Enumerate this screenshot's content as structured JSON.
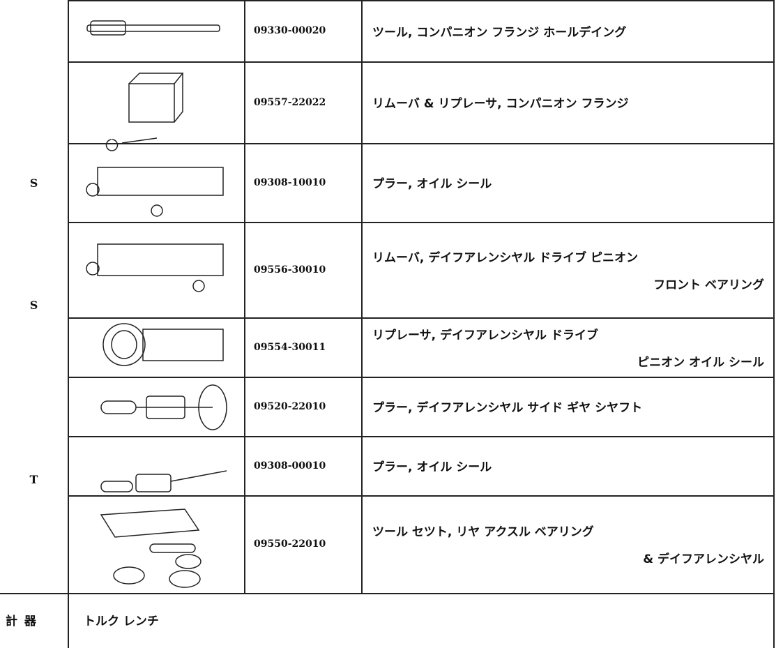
{
  "groups": [
    "S",
    "S",
    "T"
  ],
  "table": {
    "rows": [
      {
        "part_number": "09330-00020",
        "description": [
          "ツール, コンパニオン フランジ ホールデイング"
        ]
      },
      {
        "part_number": "09557-22022",
        "description": [
          "リムーバ & リプレーサ, コンパニオン フランジ"
        ]
      },
      {
        "part_number": "09308-10010",
        "description": [
          "プラー, オイル シール"
        ]
      },
      {
        "part_number": "09556-30010",
        "description": [
          "リムーバ, デイフアレンシヤル ドライブ ピニオン",
          "フロント ベアリング"
        ]
      },
      {
        "part_number": "09554-30011",
        "description": [
          "リプレーサ, デイフアレンシヤル ドライブ",
          "ピニオン オイル シール"
        ]
      },
      {
        "part_number": "09520-22010",
        "description": [
          "プラー, デイフアレンシヤル サイド ギヤ シヤフト"
        ]
      },
      {
        "part_number": "09308-00010",
        "description": [
          "プラー, オイル シール"
        ]
      },
      {
        "part_number": "09550-22010",
        "description": [
          "ツール セツト, リヤ アクスル ベアリング",
          "& デイフアレンシヤル"
        ]
      }
    ]
  },
  "footer": {
    "label": "計 器",
    "text": "トルク レンチ"
  }
}
